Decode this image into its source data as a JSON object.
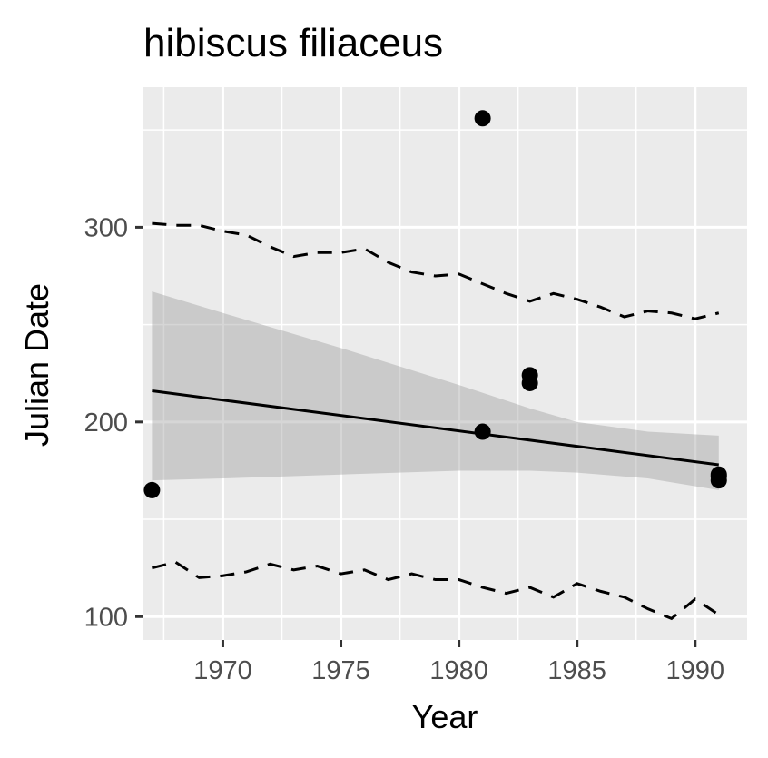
{
  "chart_data": {
    "type": "scatter",
    "title": "hibiscus filiaceus",
    "xlabel": "Year",
    "ylabel": "Julian Date",
    "xlim": [
      1966.6,
      1992.2
    ],
    "ylim": [
      88,
      372
    ],
    "x_ticks": [
      1970,
      1975,
      1980,
      1985,
      1990
    ],
    "y_ticks": [
      100,
      200,
      300
    ],
    "grid": true,
    "background": "#ebebeb",
    "grid_color": "#ffffff",
    "points": [
      {
        "x": 1967,
        "y": 165
      },
      {
        "x": 1981,
        "y": 356
      },
      {
        "x": 1981,
        "y": 195
      },
      {
        "x": 1983,
        "y": 224
      },
      {
        "x": 1983,
        "y": 220
      },
      {
        "x": 1991,
        "y": 173
      },
      {
        "x": 1991,
        "y": 170
      },
      {
        "x": 1991,
        "y": 172
      }
    ],
    "trend_line": {
      "x": [
        1967,
        1991
      ],
      "y": [
        216,
        178
      ]
    },
    "confidence_band": {
      "x": [
        1967,
        1970,
        1975,
        1980,
        1983,
        1985,
        1988,
        1991
      ],
      "lower": [
        170,
        171,
        173,
        175,
        175,
        174,
        171,
        165
      ],
      "upper": [
        267,
        256,
        238,
        219,
        207,
        200,
        195,
        193
      ]
    },
    "upper_dashed": {
      "x": [
        1967,
        1968,
        1969,
        1970,
        1971,
        1972,
        1973,
        1974,
        1975,
        1976,
        1977,
        1978,
        1979,
        1980,
        1981,
        1982,
        1983,
        1984,
        1985,
        1986,
        1987,
        1988,
        1989,
        1990,
        1991
      ],
      "y": [
        302,
        301,
        301,
        298,
        296,
        290,
        285,
        287,
        287,
        289,
        282,
        277,
        275,
        276,
        271,
        266,
        262,
        266,
        263,
        259,
        254,
        257,
        256,
        253,
        256
      ]
    },
    "lower_dashed": {
      "x": [
        1967,
        1968,
        1969,
        1970,
        1971,
        1972,
        1973,
        1974,
        1975,
        1976,
        1977,
        1978,
        1979,
        1980,
        1981,
        1982,
        1983,
        1984,
        1985,
        1986,
        1987,
        1988,
        1989,
        1990,
        1991
      ],
      "y": [
        125,
        128,
        120,
        121,
        123,
        127,
        124,
        126,
        122,
        124,
        119,
        122,
        119,
        119,
        115,
        112,
        115,
        110,
        117,
        113,
        110,
        104,
        99,
        109,
        101
      ]
    }
  }
}
